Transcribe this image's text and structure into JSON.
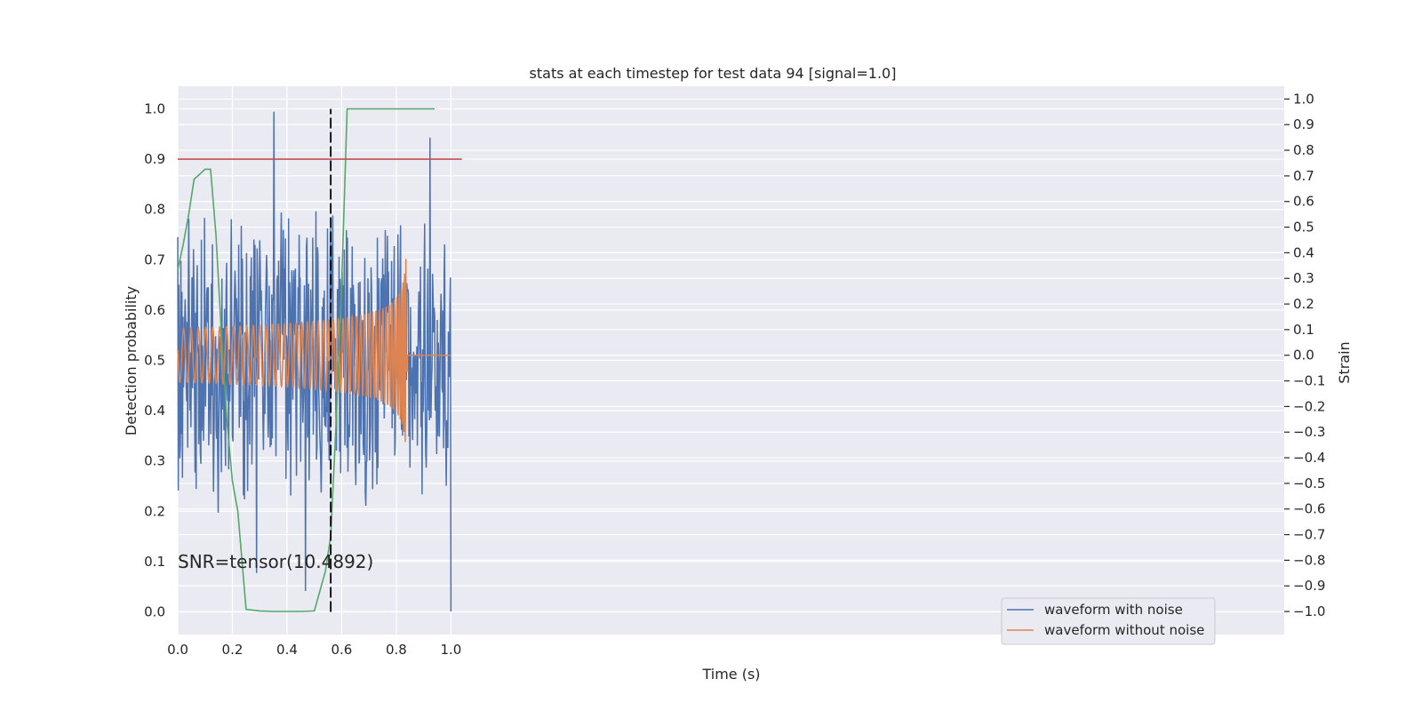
{
  "chart_data": {
    "type": "line",
    "title": "stats at each timestep for test data 94 [signal=1.0]",
    "xlabel": "Time (s)",
    "ylabel": "Detection probability",
    "ylabel_right": "Strain",
    "xlim": [
      0.0,
      4.05
    ],
    "ylim": [
      -0.045,
      1.045
    ],
    "ylim_right": [
      -1.09,
      1.05
    ],
    "x_ticks": [
      "0.0",
      "0.2",
      "0.4",
      "0.6",
      "0.8",
      "1.0"
    ],
    "x_tick_values": [
      0.0,
      0.2,
      0.4,
      0.6,
      0.8,
      1.0
    ],
    "y_ticks": [
      "0.0",
      "0.1",
      "0.2",
      "0.3",
      "0.4",
      "0.5",
      "0.6",
      "0.7",
      "0.8",
      "0.9",
      "1.0"
    ],
    "y_tick_values": [
      0.0,
      0.1,
      0.2,
      0.3,
      0.4,
      0.5,
      0.6,
      0.7,
      0.8,
      0.9,
      1.0
    ],
    "y_right_ticks": [
      "1.0",
      "0.9",
      "0.8",
      "0.7",
      "0.6",
      "0.5",
      "0.4",
      "0.3",
      "0.2",
      "0.1",
      "0.0",
      "−0.1",
      "−0.2",
      "−0.3",
      "−0.4",
      "−0.5",
      "−0.6",
      "−0.7",
      "−0.8",
      "−0.9",
      "−1.0"
    ],
    "y_right_tick_values": [
      1.0,
      0.9,
      0.8,
      0.7,
      0.6,
      0.5,
      0.4,
      0.3,
      0.2,
      0.1,
      0.0,
      -0.1,
      -0.2,
      -0.3,
      -0.4,
      -0.5,
      -0.6,
      -0.7,
      -0.8,
      -0.9,
      -1.0
    ],
    "grid": true,
    "legend_position": "lower-right",
    "series": [
      {
        "name": "waveform with noise",
        "color": "#4c72b0",
        "axis": "right",
        "description_x_range": [
          0.0,
          1.0
        ],
        "amplitude_range": [
          -1.0,
          0.95
        ]
      },
      {
        "name": "waveform without noise",
        "color": "#dd8452",
        "axis": "right",
        "chirp_x_range": [
          0.0,
          0.84
        ],
        "peak_amplitude": 0.43,
        "x_end": 1.0
      }
    ],
    "detection_curve": {
      "color": "#55a868",
      "axis": "left",
      "x": [
        0.0,
        0.02,
        0.04,
        0.06,
        0.08,
        0.1,
        0.12,
        0.14,
        0.16,
        0.18,
        0.2,
        0.22,
        0.25,
        0.3,
        0.35,
        0.4,
        0.45,
        0.5,
        0.54,
        0.56,
        0.58,
        0.6,
        0.62,
        0.64,
        0.7,
        0.8,
        0.9,
        0.94
      ],
      "y": [
        0.68,
        0.73,
        0.79,
        0.86,
        0.87,
        0.88,
        0.88,
        0.75,
        0.55,
        0.38,
        0.26,
        0.2,
        0.005,
        0.002,
        0.001,
        0.001,
        0.001,
        0.002,
        0.08,
        0.15,
        0.38,
        0.65,
        1.0,
        1.0,
        1.0,
        1.0,
        1.0,
        1.0
      ]
    },
    "threshold_line": {
      "y": 0.9,
      "x_range": [
        0.0,
        1.04
      ],
      "color": "#c44e52",
      "axis": "left"
    },
    "event_marker": {
      "x": 0.56,
      "y_range": [
        0.0,
        1.0
      ],
      "color": "#000000",
      "style": "dashed"
    },
    "annotation": {
      "text": "SNR=tensor(10.4892)",
      "x": 0.0,
      "y": 0.1
    },
    "colors": {
      "background": "#eaeaf2",
      "grid": "#ffffff"
    }
  }
}
